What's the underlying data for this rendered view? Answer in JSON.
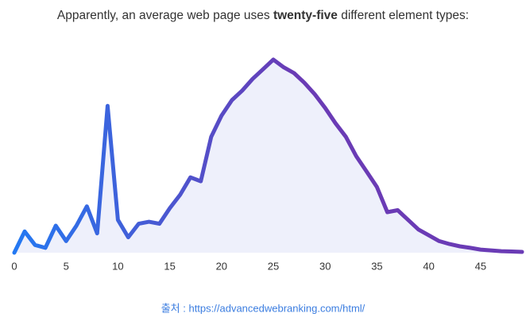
{
  "chart_data": {
    "type": "line",
    "title": [
      "Apparently, an average web page uses ",
      "twenty-five",
      " different element types:"
    ],
    "source": "출처 : https://advancedwebranking.com/html/",
    "x": [
      0,
      1,
      2,
      3,
      4,
      5,
      6,
      7,
      8,
      9,
      10,
      11,
      12,
      13,
      14,
      15,
      16,
      17,
      18,
      19,
      20,
      21,
      22,
      23,
      24,
      25,
      26,
      27,
      28,
      29,
      30,
      31,
      32,
      33,
      34,
      35,
      36,
      37,
      38,
      39,
      40,
      41,
      42,
      43,
      44,
      45,
      46,
      47,
      48,
      49
    ],
    "values": [
      0,
      11,
      4,
      2.5,
      14,
      6,
      14,
      24,
      10,
      76,
      17,
      8,
      15,
      16,
      15,
      23,
      30,
      39,
      37,
      60,
      71,
      79,
      84,
      90,
      95,
      100,
      96,
      93,
      88,
      82,
      75,
      67,
      60,
      50,
      42,
      34,
      21,
      22,
      17,
      12,
      9,
      6,
      4.5,
      3.3,
      2.5,
      1.6,
      1.2,
      0.8,
      0.6,
      0.4
    ],
    "xlim": [
      0,
      49
    ],
    "xticks": [
      0,
      5,
      10,
      15,
      20,
      25,
      30,
      35,
      40,
      45
    ],
    "ylim": [
      0,
      100
    ],
    "line_gradient": [
      "#2479f2",
      "#6a3bb5"
    ],
    "fill_color": "#eef0fb"
  }
}
